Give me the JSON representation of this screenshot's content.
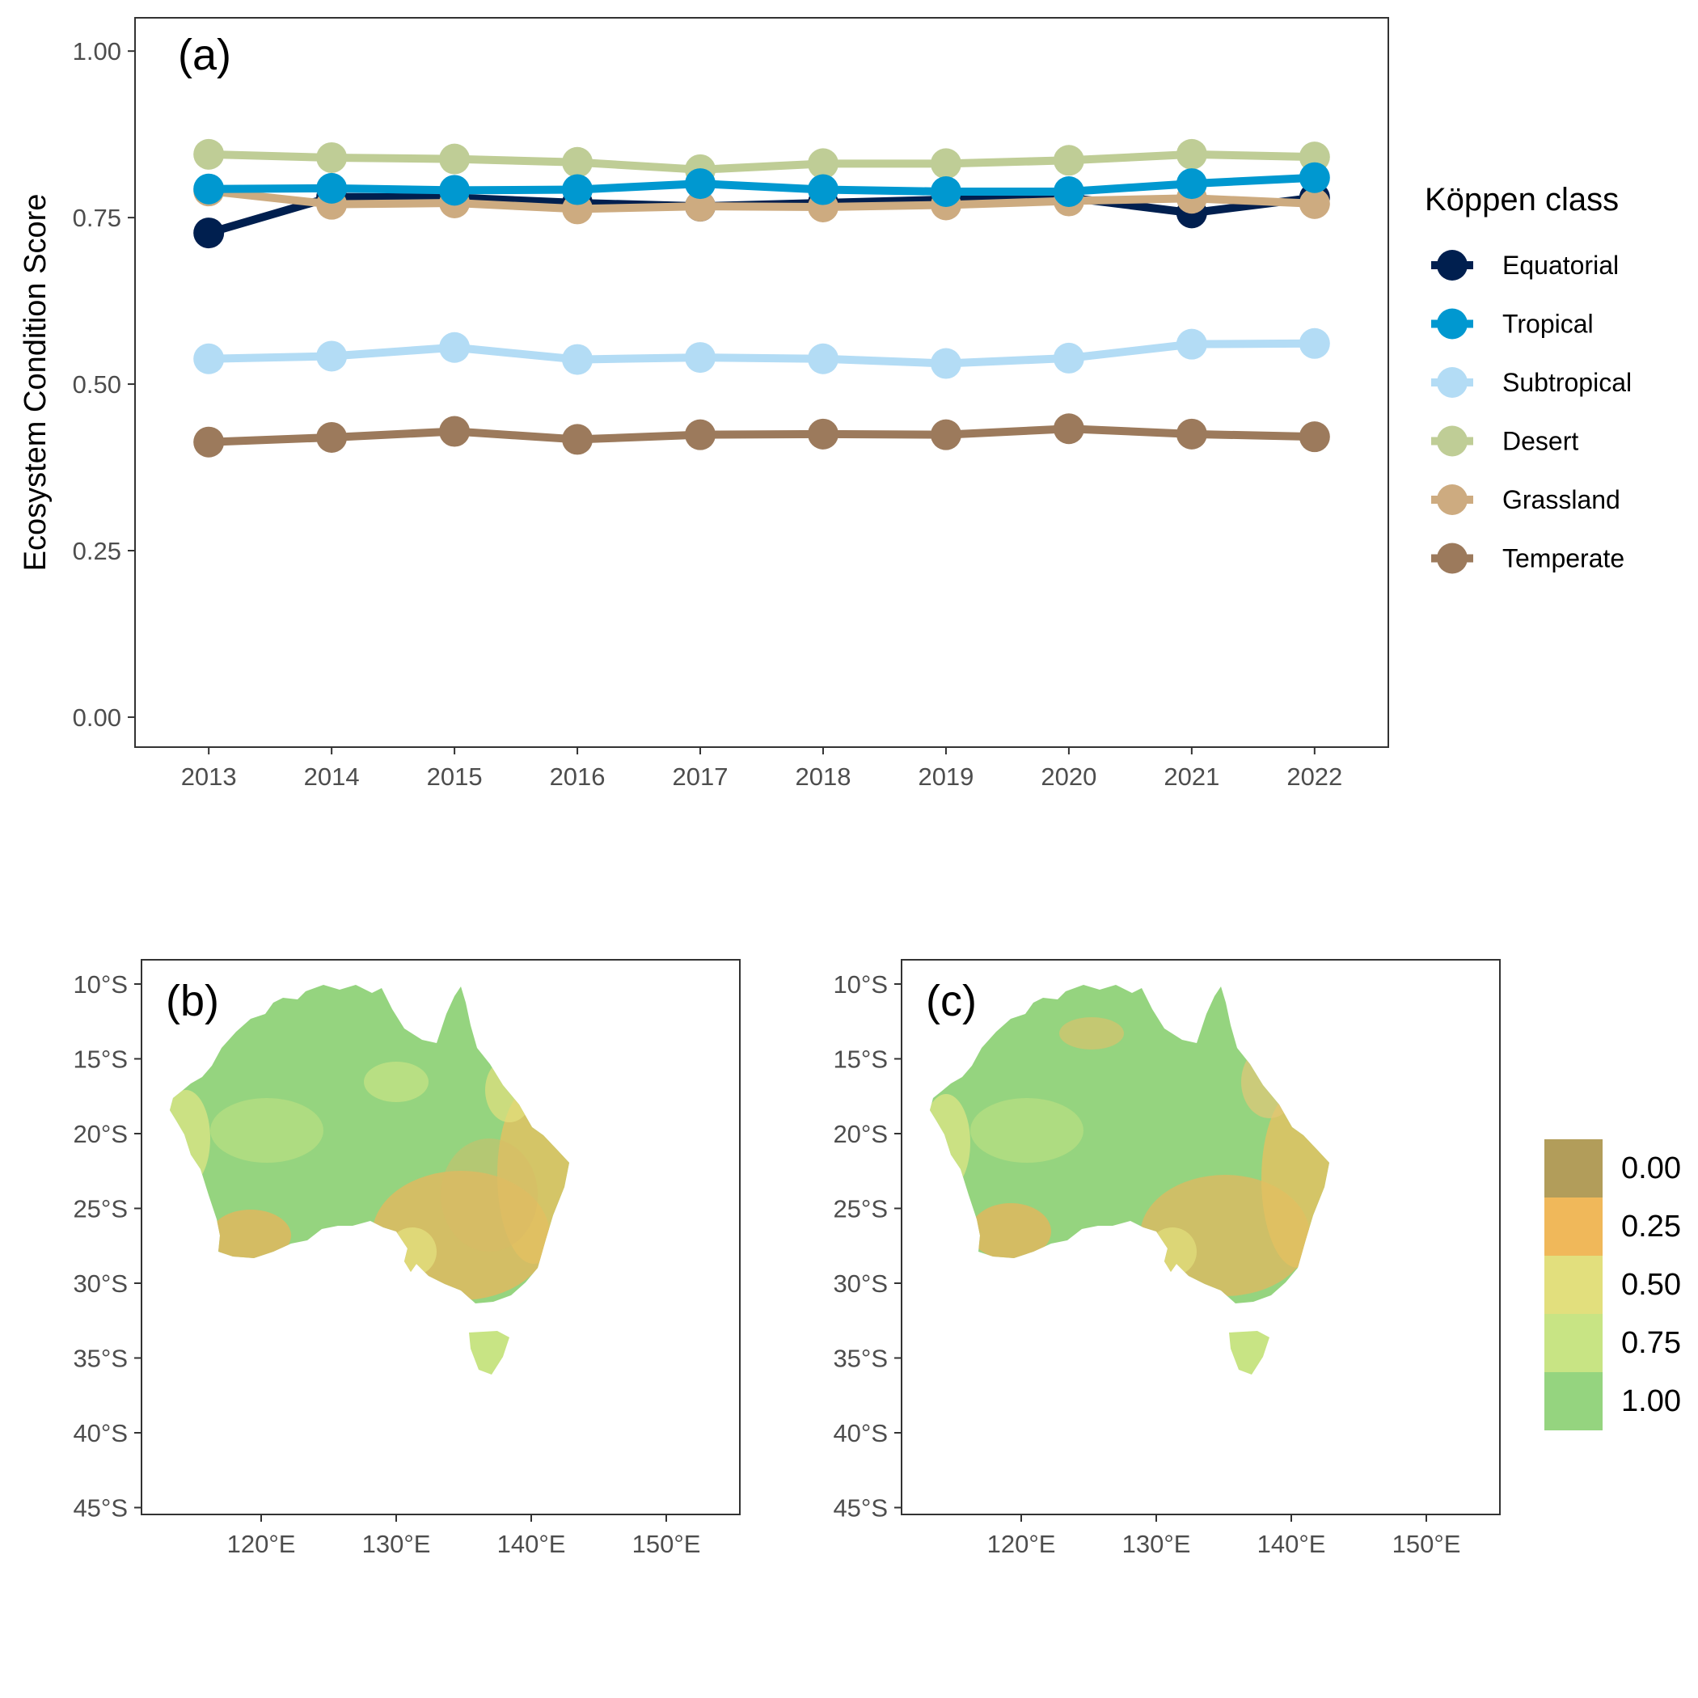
{
  "chart_data": [
    {
      "type": "line",
      "panel_tag": "(a)",
      "ylabel": "Ecosystem Condition Score",
      "xlabel": "",
      "x": [
        2013,
        2014,
        2015,
        2016,
        2017,
        2018,
        2019,
        2020,
        2021,
        2022
      ],
      "x_tick_labels": [
        "2013",
        "2014",
        "2015",
        "2016",
        "2017",
        "2018",
        "2019",
        "2020",
        "2021",
        "2022"
      ],
      "y_ticks": [
        0.0,
        0.25,
        0.5,
        0.75,
        1.0
      ],
      "y_tick_labels": [
        "0.00",
        "0.25",
        "0.50",
        "0.75",
        "1.00"
      ],
      "ylim": [
        -0.045,
        1.05
      ],
      "xlim": [
        2012.4,
        2022.6
      ],
      "grid": false,
      "legend": {
        "title": "Köppen class",
        "placement": "right"
      },
      "series": [
        {
          "name": "Equatorial",
          "color": "#001f4f",
          "values": [
            0.727,
            0.781,
            0.78,
            0.772,
            0.767,
            0.772,
            0.777,
            0.78,
            0.757,
            0.78
          ]
        },
        {
          "name": "Tropical",
          "color": "#0098d0",
          "values": [
            0.793,
            0.794,
            0.791,
            0.792,
            0.801,
            0.792,
            0.789,
            0.789,
            0.801,
            0.81
          ]
        },
        {
          "name": "Subtropical",
          "color": "#b3dcf5",
          "values": [
            0.538,
            0.542,
            0.555,
            0.537,
            0.54,
            0.538,
            0.531,
            0.539,
            0.56,
            0.561
          ]
        },
        {
          "name": "Desert",
          "color": "#bfcd96",
          "values": [
            0.845,
            0.84,
            0.838,
            0.833,
            0.822,
            0.831,
            0.831,
            0.836,
            0.845,
            0.841
          ]
        },
        {
          "name": "Grassland",
          "color": "#cdab80",
          "values": [
            0.79,
            0.77,
            0.772,
            0.763,
            0.767,
            0.766,
            0.769,
            0.775,
            0.779,
            0.771
          ]
        },
        {
          "name": "Temperate",
          "color": "#9c7a5c",
          "values": [
            0.413,
            0.42,
            0.429,
            0.417,
            0.424,
            0.425,
            0.424,
            0.433,
            0.425,
            0.421
          ]
        }
      ]
    },
    {
      "type": "heatmap",
      "panel_tag": "(b)",
      "lat_ticks": [
        "10°S",
        "15°S",
        "20°S",
        "25°S",
        "30°S",
        "35°S",
        "40°S",
        "45°S"
      ],
      "lon_ticks": [
        "120°E",
        "130°E",
        "140°E",
        "150°E"
      ]
    },
    {
      "type": "heatmap",
      "panel_tag": "(c)",
      "lat_ticks": [
        "10°S",
        "15°S",
        "20°S",
        "25°S",
        "30°S",
        "35°S",
        "40°S",
        "45°S"
      ],
      "lon_ticks": [
        "120°E",
        "130°E",
        "140°E",
        "150°E"
      ]
    }
  ],
  "colorbar": {
    "labels": [
      "0.00",
      "0.25",
      "0.50",
      "0.75",
      "1.00"
    ],
    "colors": [
      "#b29d5a",
      "#f0b85a",
      "#e2df7d",
      "#c8e484",
      "#95d47f"
    ]
  }
}
